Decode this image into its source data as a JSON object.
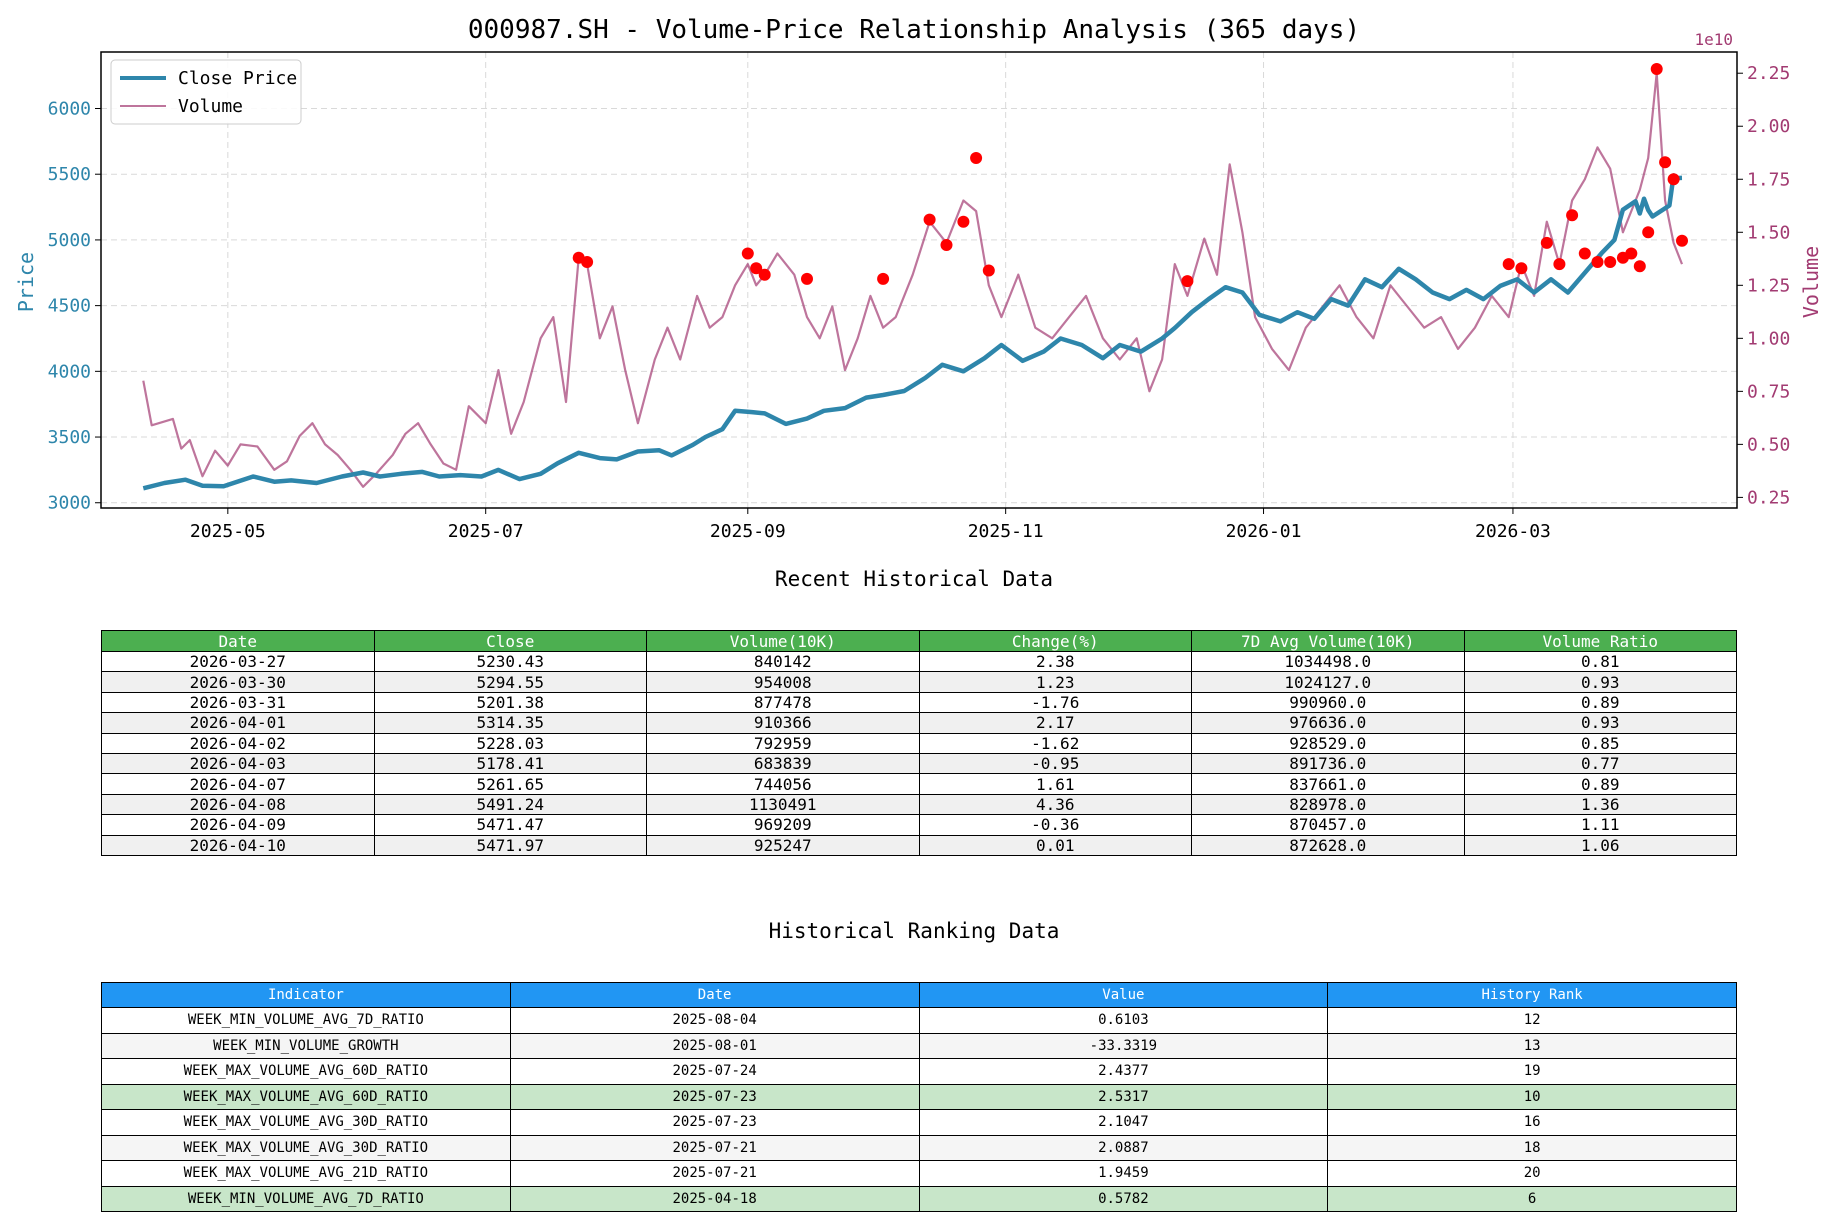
{
  "chart_data": {
    "type": "line",
    "title": "000987.SH - Volume-Price Relationship Analysis (365 days)",
    "y_left_label": "Price",
    "y_right_label": "Volume",
    "y_right_offset_label": "1e10",
    "y_left_ticks": [
      3000,
      3500,
      4000,
      4500,
      5000,
      5500,
      6000
    ],
    "y_left_lim": [
      2960,
      6430
    ],
    "y_right_ticks": [
      "0.25",
      "0.50",
      "0.75",
      "1.00",
      "1.25",
      "1.50",
      "1.75",
      "2.00",
      "2.25"
    ],
    "y_right_lim": [
      0.2,
      2.35
    ],
    "x_start": "2025-04-11",
    "x_end": "2026-04-10",
    "x_lim": [
      "2025-04-01",
      "2026-04-23"
    ],
    "x_ticks": [
      "2025-05",
      "2025-07",
      "2025-09",
      "2025-11",
      "2026-01",
      "2026-03"
    ],
    "grid": true,
    "legend_position": "upper-left",
    "colors": {
      "price": "#2e86ab",
      "volume": "#a23b72",
      "signal": "#ff0000"
    },
    "series": [
      {
        "name": "Close Price",
        "axis": "left",
        "points": [
          [
            "2025-04-11",
            3110
          ],
          [
            "2025-04-16",
            3150
          ],
          [
            "2025-04-21",
            3175
          ],
          [
            "2025-04-25",
            3130
          ],
          [
            "2025-04-30",
            3125
          ],
          [
            "2025-05-07",
            3200
          ],
          [
            "2025-05-12",
            3160
          ],
          [
            "2025-05-16",
            3170
          ],
          [
            "2025-05-22",
            3150
          ],
          [
            "2025-05-28",
            3200
          ],
          [
            "2025-06-02",
            3230
          ],
          [
            "2025-06-06",
            3200
          ],
          [
            "2025-06-11",
            3220
          ],
          [
            "2025-06-16",
            3235
          ],
          [
            "2025-06-20",
            3200
          ],
          [
            "2025-06-25",
            3210
          ],
          [
            "2025-06-30",
            3200
          ],
          [
            "2025-07-04",
            3250
          ],
          [
            "2025-07-09",
            3180
          ],
          [
            "2025-07-14",
            3220
          ],
          [
            "2025-07-18",
            3300
          ],
          [
            "2025-07-23",
            3380
          ],
          [
            "2025-07-28",
            3340
          ],
          [
            "2025-08-01",
            3330
          ],
          [
            "2025-08-06",
            3390
          ],
          [
            "2025-08-11",
            3400
          ],
          [
            "2025-08-14",
            3360
          ],
          [
            "2025-08-19",
            3440
          ],
          [
            "2025-08-22",
            3500
          ],
          [
            "2025-08-26",
            3560
          ],
          [
            "2025-08-29",
            3700
          ],
          [
            "2025-09-02",
            3690
          ],
          [
            "2025-09-05",
            3680
          ],
          [
            "2025-09-10",
            3600
          ],
          [
            "2025-09-15",
            3640
          ],
          [
            "2025-09-19",
            3700
          ],
          [
            "2025-09-24",
            3720
          ],
          [
            "2025-09-29",
            3800
          ],
          [
            "2025-10-03",
            3820
          ],
          [
            "2025-10-08",
            3850
          ],
          [
            "2025-10-13",
            3950
          ],
          [
            "2025-10-17",
            4050
          ],
          [
            "2025-10-22",
            4000
          ],
          [
            "2025-10-27",
            4100
          ],
          [
            "2025-10-31",
            4200
          ],
          [
            "2025-11-05",
            4080
          ],
          [
            "2025-11-10",
            4150
          ],
          [
            "2025-11-14",
            4250
          ],
          [
            "2025-11-19",
            4200
          ],
          [
            "2025-11-24",
            4100
          ],
          [
            "2025-11-28",
            4200
          ],
          [
            "2025-12-03",
            4150
          ],
          [
            "2025-12-08",
            4250
          ],
          [
            "2025-12-11",
            4330
          ],
          [
            "2025-12-15",
            4450
          ],
          [
            "2025-12-19",
            4550
          ],
          [
            "2025-12-23",
            4640
          ],
          [
            "2025-12-27",
            4600
          ],
          [
            "2025-12-31",
            4430
          ],
          [
            "2026-01-05",
            4380
          ],
          [
            "2026-01-09",
            4450
          ],
          [
            "2026-01-13",
            4400
          ],
          [
            "2026-01-17",
            4550
          ],
          [
            "2026-01-21",
            4500
          ],
          [
            "2026-01-25",
            4700
          ],
          [
            "2026-01-29",
            4640
          ],
          [
            "2026-02-02",
            4780
          ],
          [
            "2026-02-06",
            4700
          ],
          [
            "2026-02-10",
            4600
          ],
          [
            "2026-02-14",
            4550
          ],
          [
            "2026-02-18",
            4620
          ],
          [
            "2026-02-22",
            4550
          ],
          [
            "2026-02-26",
            4650
          ],
          [
            "2026-03-02",
            4700
          ],
          [
            "2026-03-06",
            4600
          ],
          [
            "2026-03-10",
            4700
          ],
          [
            "2026-03-14",
            4600
          ],
          [
            "2026-03-18",
            4750
          ],
          [
            "2026-03-22",
            4900
          ],
          [
            "2026-03-25",
            5000
          ],
          [
            "2026-03-27",
            5230
          ],
          [
            "2026-03-30",
            5295
          ],
          [
            "2026-03-31",
            5201
          ],
          [
            "2026-04-01",
            5314
          ],
          [
            "2026-04-02",
            5228
          ],
          [
            "2026-04-03",
            5178
          ],
          [
            "2026-04-07",
            5262
          ],
          [
            "2026-04-08",
            5491
          ],
          [
            "2026-04-09",
            5471
          ],
          [
            "2026-04-10",
            5472
          ]
        ]
      },
      {
        "name": "Volume",
        "axis": "right",
        "points": [
          [
            "2025-04-11",
            0.8
          ],
          [
            "2025-04-13",
            0.59
          ],
          [
            "2025-04-18",
            0.62
          ],
          [
            "2025-04-20",
            0.48
          ],
          [
            "2025-04-22",
            0.52
          ],
          [
            "2025-04-25",
            0.35
          ],
          [
            "2025-04-28",
            0.47
          ],
          [
            "2025-05-01",
            0.4
          ],
          [
            "2025-05-04",
            0.5
          ],
          [
            "2025-05-08",
            0.49
          ],
          [
            "2025-05-12",
            0.38
          ],
          [
            "2025-05-15",
            0.42
          ],
          [
            "2025-05-18",
            0.54
          ],
          [
            "2025-05-21",
            0.6
          ],
          [
            "2025-05-24",
            0.5
          ],
          [
            "2025-05-27",
            0.45
          ],
          [
            "2025-05-30",
            0.38
          ],
          [
            "2025-06-02",
            0.3
          ],
          [
            "2025-06-05",
            0.36
          ],
          [
            "2025-06-09",
            0.45
          ],
          [
            "2025-06-12",
            0.55
          ],
          [
            "2025-06-15",
            0.6
          ],
          [
            "2025-06-18",
            0.5
          ],
          [
            "2025-06-21",
            0.41
          ],
          [
            "2025-06-24",
            0.38
          ],
          [
            "2025-06-27",
            0.68
          ],
          [
            "2025-07-01",
            0.6
          ],
          [
            "2025-07-04",
            0.85
          ],
          [
            "2025-07-07",
            0.55
          ],
          [
            "2025-07-10",
            0.7
          ],
          [
            "2025-07-14",
            1.0
          ],
          [
            "2025-07-17",
            1.1
          ],
          [
            "2025-07-20",
            0.7
          ],
          [
            "2025-07-23",
            1.38
          ],
          [
            "2025-07-25",
            1.35
          ],
          [
            "2025-07-28",
            1.0
          ],
          [
            "2025-07-31",
            1.15
          ],
          [
            "2025-08-03",
            0.85
          ],
          [
            "2025-08-06",
            0.6
          ],
          [
            "2025-08-10",
            0.9
          ],
          [
            "2025-08-13",
            1.05
          ],
          [
            "2025-08-16",
            0.9
          ],
          [
            "2025-08-20",
            1.2
          ],
          [
            "2025-08-23",
            1.05
          ],
          [
            "2025-08-26",
            1.1
          ],
          [
            "2025-08-29",
            1.25
          ],
          [
            "2025-09-01",
            1.35
          ],
          [
            "2025-09-03",
            1.25
          ],
          [
            "2025-09-05",
            1.3
          ],
          [
            "2025-09-08",
            1.4
          ],
          [
            "2025-09-12",
            1.3
          ],
          [
            "2025-09-15",
            1.1
          ],
          [
            "2025-09-18",
            1.0
          ],
          [
            "2025-09-21",
            1.15
          ],
          [
            "2025-09-24",
            0.85
          ],
          [
            "2025-09-27",
            1.0
          ],
          [
            "2025-09-30",
            1.2
          ],
          [
            "2025-10-03",
            1.05
          ],
          [
            "2025-10-06",
            1.1
          ],
          [
            "2025-10-10",
            1.3
          ],
          [
            "2025-10-14",
            1.55
          ],
          [
            "2025-10-18",
            1.45
          ],
          [
            "2025-10-22",
            1.65
          ],
          [
            "2025-10-25",
            1.6
          ],
          [
            "2025-10-28",
            1.25
          ],
          [
            "2025-10-31",
            1.1
          ],
          [
            "2025-11-04",
            1.3
          ],
          [
            "2025-11-08",
            1.05
          ],
          [
            "2025-11-12",
            1.0
          ],
          [
            "2025-11-16",
            1.1
          ],
          [
            "2025-11-20",
            1.2
          ],
          [
            "2025-11-24",
            1.0
          ],
          [
            "2025-11-28",
            0.9
          ],
          [
            "2025-12-02",
            1.0
          ],
          [
            "2025-12-05",
            0.75
          ],
          [
            "2025-12-08",
            0.9
          ],
          [
            "2025-12-11",
            1.35
          ],
          [
            "2025-12-14",
            1.2
          ],
          [
            "2025-12-18",
            1.47
          ],
          [
            "2025-12-21",
            1.3
          ],
          [
            "2025-12-24",
            1.82
          ],
          [
            "2025-12-27",
            1.5
          ],
          [
            "2025-12-30",
            1.1
          ],
          [
            "2026-01-03",
            0.95
          ],
          [
            "2026-01-07",
            0.85
          ],
          [
            "2026-01-11",
            1.05
          ],
          [
            "2026-01-15",
            1.15
          ],
          [
            "2026-01-19",
            1.25
          ],
          [
            "2026-01-23",
            1.1
          ],
          [
            "2026-01-27",
            1.0
          ],
          [
            "2026-01-31",
            1.25
          ],
          [
            "2026-02-04",
            1.15
          ],
          [
            "2026-02-08",
            1.05
          ],
          [
            "2026-02-12",
            1.1
          ],
          [
            "2026-02-16",
            0.95
          ],
          [
            "2026-02-20",
            1.05
          ],
          [
            "2026-02-24",
            1.2
          ],
          [
            "2026-02-28",
            1.1
          ],
          [
            "2026-03-03",
            1.35
          ],
          [
            "2026-03-06",
            1.2
          ],
          [
            "2026-03-09",
            1.55
          ],
          [
            "2026-03-12",
            1.35
          ],
          [
            "2026-03-15",
            1.65
          ],
          [
            "2026-03-18",
            1.75
          ],
          [
            "2026-03-21",
            1.9
          ],
          [
            "2026-03-24",
            1.8
          ],
          [
            "2026-03-27",
            1.5
          ],
          [
            "2026-03-29",
            1.6
          ],
          [
            "2026-03-31",
            1.7
          ],
          [
            "2026-04-02",
            1.85
          ],
          [
            "2026-04-04",
            2.25
          ],
          [
            "2026-04-06",
            1.65
          ],
          [
            "2026-04-08",
            1.45
          ],
          [
            "2026-04-10",
            1.35
          ]
        ]
      }
    ],
    "signal_points": [
      [
        "2025-07-23",
        1.38
      ],
      [
        "2025-07-25",
        1.36
      ],
      [
        "2025-09-01",
        1.4
      ],
      [
        "2025-09-03",
        1.33
      ],
      [
        "2025-09-05",
        1.3
      ],
      [
        "2025-09-15",
        1.28
      ],
      [
        "2025-10-03",
        1.28
      ],
      [
        "2025-10-14",
        1.56
      ],
      [
        "2025-10-18",
        1.44
      ],
      [
        "2025-10-22",
        1.55
      ],
      [
        "2025-10-25",
        1.85
      ],
      [
        "2025-10-28",
        1.32
      ],
      [
        "2025-12-14",
        1.27
      ],
      [
        "2026-02-28",
        1.35
      ],
      [
        "2026-03-03",
        1.33
      ],
      [
        "2026-03-09",
        1.45
      ],
      [
        "2026-03-12",
        1.35
      ],
      [
        "2026-03-15",
        1.58
      ],
      [
        "2026-03-18",
        1.4
      ],
      [
        "2026-03-21",
        1.36
      ],
      [
        "2026-03-24",
        1.36
      ],
      [
        "2026-03-27",
        1.38
      ],
      [
        "2026-03-29",
        1.4
      ],
      [
        "2026-03-31",
        1.34
      ],
      [
        "2026-04-02",
        1.5
      ],
      [
        "2026-04-04",
        2.27
      ],
      [
        "2026-04-06",
        1.83
      ],
      [
        "2026-04-08",
        1.75
      ],
      [
        "2026-04-10",
        1.46
      ]
    ]
  },
  "recent_table": {
    "title": "Recent Historical Data",
    "headers": [
      "Date",
      "Close",
      "Volume(10K)",
      "Change(%)",
      "7D Avg Volume(10K)",
      "Volume Ratio"
    ],
    "rows": [
      [
        "2026-03-27",
        "5230.43",
        "840142",
        "2.38",
        "1034498.0",
        "0.81"
      ],
      [
        "2026-03-30",
        "5294.55",
        "954008",
        "1.23",
        "1024127.0",
        "0.93"
      ],
      [
        "2026-03-31",
        "5201.38",
        "877478",
        "-1.76",
        "990960.0",
        "0.89"
      ],
      [
        "2026-04-01",
        "5314.35",
        "910366",
        "2.17",
        "976636.0",
        "0.93"
      ],
      [
        "2026-04-02",
        "5228.03",
        "792959",
        "-1.62",
        "928529.0",
        "0.85"
      ],
      [
        "2026-04-03",
        "5178.41",
        "683839",
        "-0.95",
        "891736.0",
        "0.77"
      ],
      [
        "2026-04-07",
        "5261.65",
        "744056",
        "1.61",
        "837661.0",
        "0.89"
      ],
      [
        "2026-04-08",
        "5491.24",
        "1130491",
        "4.36",
        "828978.0",
        "1.36"
      ],
      [
        "2026-04-09",
        "5471.47",
        "969209",
        "-0.36",
        "870457.0",
        "1.11"
      ],
      [
        "2026-04-10",
        "5471.97",
        "925247",
        "0.01",
        "872628.0",
        "1.06"
      ]
    ]
  },
  "ranking_table": {
    "title": "Historical Ranking Data",
    "headers": [
      "Indicator",
      "Date",
      "Value",
      "History Rank"
    ],
    "rows": [
      [
        "WEEK_MIN_VOLUME_AVG_7D_RATIO",
        "2025-08-04",
        "0.6103",
        "12"
      ],
      [
        "WEEK_MIN_VOLUME_GROWTH",
        "2025-08-01",
        "-33.3319",
        "13"
      ],
      [
        "WEEK_MAX_VOLUME_AVG_60D_RATIO",
        "2025-07-24",
        "2.4377",
        "19"
      ],
      [
        "WEEK_MAX_VOLUME_AVG_60D_RATIO",
        "2025-07-23",
        "2.5317",
        "10"
      ],
      [
        "WEEK_MAX_VOLUME_AVG_30D_RATIO",
        "2025-07-23",
        "2.1047",
        "16"
      ],
      [
        "WEEK_MAX_VOLUME_AVG_30D_RATIO",
        "2025-07-21",
        "2.0887",
        "18"
      ],
      [
        "WEEK_MAX_VOLUME_AVG_21D_RATIO",
        "2025-07-21",
        "1.9459",
        "20"
      ],
      [
        "WEEK_MIN_VOLUME_AVG_7D_RATIO",
        "2025-04-18",
        "0.5782",
        "6"
      ]
    ],
    "highlighted_rows": [
      3,
      7
    ]
  }
}
